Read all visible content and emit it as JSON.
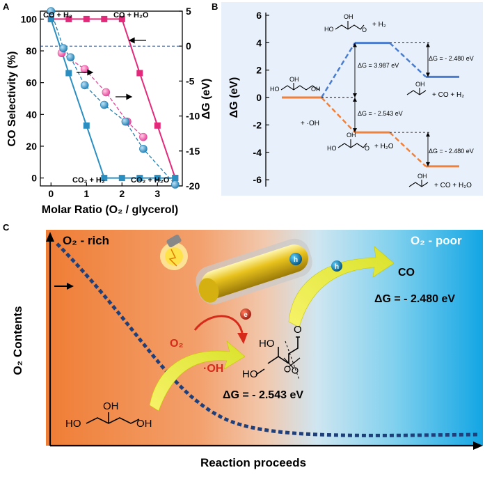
{
  "panels": {
    "a": "A",
    "b": "B",
    "c": "C"
  },
  "colors": {
    "pink": "#e2297a",
    "blue": "#2a8fc0",
    "pink_sphere": "#e8409a",
    "blue_sphere": "#1f7fb5",
    "dark_line": "#1e3f7a",
    "energy_blue": "#4a7ccd",
    "energy_orange": "#f0803a",
    "panel_b_bg": "#e8f1fb"
  },
  "chart_data": [
    {
      "id": "A",
      "type": "line",
      "xlabel": "Molar Ratio (O₂ / glycerol)",
      "ylabel": "CO Selectivity (%)",
      "y2label": "ΔG (eV)",
      "xlim": [
        -0.3,
        3.7
      ],
      "ylim": [
        -5,
        105
      ],
      "y2lim": [
        -20,
        5
      ],
      "xticks": [
        "0",
        "1",
        "2",
        "3"
      ],
      "yticks": [
        "0",
        "20",
        "40",
        "60",
        "80",
        "100"
      ],
      "y2ticks": [
        "5",
        "0",
        "-5",
        "-10",
        "-15",
        "-20"
      ],
      "series": [
        {
          "id": "co-h2o",
          "axis": "left",
          "color": "#e2297a",
          "marker": "square",
          "points": [
            [
              0,
              100
            ],
            [
              0.5,
              100
            ],
            [
              1,
              100
            ],
            [
              1.5,
              100
            ],
            [
              2,
              100
            ],
            [
              2.5,
              66
            ],
            [
              3,
              33
            ],
            [
              3.5,
              0
            ]
          ]
        },
        {
          "id": "co-h2",
          "axis": "left",
          "color": "#2a8fc0",
          "marker": "square",
          "points": [
            [
              0,
              100
            ],
            [
              0.5,
              66
            ],
            [
              1,
              33
            ],
            [
              1.5,
              0
            ],
            [
              2,
              0
            ],
            [
              2.5,
              0
            ],
            [
              3,
              0
            ],
            [
              3.5,
              0
            ]
          ]
        },
        {
          "id": "dg-pink",
          "axis": "right",
          "color": "#e8409a",
          "marker": "sphere",
          "points": [
            [
              0.3,
              -1.0
            ],
            [
              0.95,
              -3.3
            ],
            [
              1.55,
              -6.6
            ],
            [
              2.15,
              -10.8
            ],
            [
              2.6,
              -13.0
            ]
          ]
        },
        {
          "id": "dg-blue",
          "axis": "right",
          "color": "#1f7fb5",
          "marker": "sphere",
          "points": [
            [
              0,
              5
            ],
            [
              0.35,
              -0.3
            ],
            [
              0.55,
              -1.6
            ],
            [
              0.95,
              -5.6
            ],
            [
              1.5,
              -8.4
            ],
            [
              2.1,
              -10.8
            ],
            [
              2.6,
              -14.7
            ],
            [
              3.5,
              -19.8
            ]
          ]
        }
      ],
      "annotations": {
        "top_left": "CO + H₂",
        "top_right": "CO + H₂O",
        "bottom_left": "CO₂ + H₂",
        "bottom_right": "CO₂ + H₂O"
      }
    },
    {
      "id": "B",
      "type": "line",
      "ylabel": "ΔG (eV)",
      "ylim": [
        -6.5,
        6.2
      ],
      "yticks": [
        "6",
        "4",
        "2",
        "0",
        "-2",
        "-4",
        "-6"
      ],
      "levels": [
        {
          "series": "blue",
          "start": 0,
          "mid": 3.987,
          "end": 1.507
        },
        {
          "series": "orange",
          "start": 0,
          "mid": -2.543,
          "end": -5.023
        }
      ],
      "labels": {
        "dg_up": "ΔG = 3.987 eV",
        "dg_down": "ΔG = - 2.543 eV",
        "dg_blue_end": "ΔG = - 2.480 eV",
        "dg_orange_end": "ΔG = - 2.480 eV",
        "plus_oh": "+ ·OH",
        "plus_h2": "+ H₂",
        "plus_h2o": "+ H₂O",
        "plus_co_h2": "+ CO + H₂",
        "plus_co_h2o": "+ CO + H₂O",
        "mol_ho": "HO",
        "mol_oh": "OH",
        "mol_o": "O"
      }
    },
    {
      "id": "C",
      "type": "line",
      "xlabel": "Reaction proceeds",
      "ylabel": "O₂ Contents",
      "labels": {
        "o2_rich": "O₂ - rich",
        "o2_poor": "O₂ - poor",
        "o2": "O₂",
        "oh_radical": "·OH",
        "electron": "e",
        "hole": "h",
        "co": "CO",
        "dg_co": "ΔG = - 2.480 eV",
        "dg_oh": "ΔG = - 2.543 eV",
        "mol_ho": "HO",
        "mol_oh": "OH",
        "mol_o": "O"
      }
    }
  ]
}
